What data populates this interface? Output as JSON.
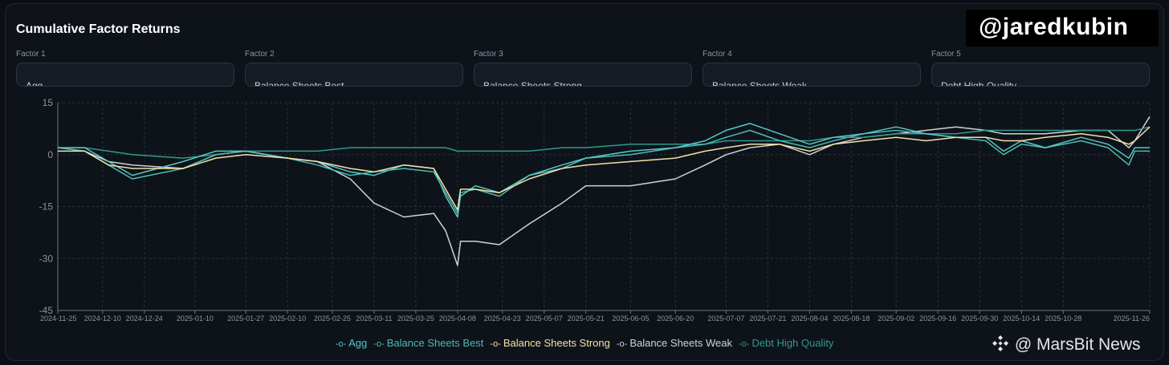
{
  "title": "Cumulative Factor Returns",
  "selectors": [
    {
      "label": "Factor 1",
      "value": "Agg"
    },
    {
      "label": "Factor 2",
      "value": "Balance Sheets Best"
    },
    {
      "label": "Factor 3",
      "value": "Balance Sheets Strong"
    },
    {
      "label": "Factor 4",
      "value": "Balance Sheets Weak"
    },
    {
      "label": "Factor 5",
      "value": "Debt High Quality"
    }
  ],
  "watermark": "@jaredkubin",
  "brand": "@ MarsBit News",
  "download_icon": "download-icon",
  "colors": {
    "Agg": "#56c8c8",
    "Balance Sheets Best": "#4fb9b1",
    "Balance Sheets Strong": "#f2e1a6",
    "Balance Sheets Weak": "#cfd3d8",
    "Debt High Quality": "#2f9a8a"
  },
  "chart_data": {
    "type": "line",
    "title": "Cumulative Factor Returns",
    "xlabel": "",
    "ylabel": "",
    "ylim": [
      -45,
      15
    ],
    "yticks": [
      15,
      0,
      -15,
      -30,
      -45
    ],
    "x_ticks": [
      "2024-11-25",
      "2024-12-10",
      "2024-12-24",
      "2025-01-10",
      "2025-01-27",
      "2025-02-10",
      "2025-02-25",
      "2025-03-11",
      "2025-03-25",
      "2025-04-08",
      "2025-04-23",
      "2025-05-07",
      "2025-05-21",
      "2025-06-05",
      "2025-06-20",
      "2025-07-07",
      "2025-07-21",
      "2025-08-04",
      "2025-08-18",
      "2025-09-02",
      "2025-09-16",
      "2025-09-30",
      "2025-10-14",
      "2025-10-28",
      "2025-11-26"
    ],
    "grid": true,
    "legend_position": "bottom",
    "series": [
      {
        "name": "Agg",
        "x": [
          "2024-11-25",
          "2024-12-04",
          "2024-12-12",
          "2024-12-20",
          "2025-01-06",
          "2025-01-17",
          "2025-01-27",
          "2025-02-10",
          "2025-02-20",
          "2025-03-03",
          "2025-03-11",
          "2025-03-21",
          "2025-03-31",
          "2025-04-04",
          "2025-04-08",
          "2025-04-09",
          "2025-04-14",
          "2025-04-22",
          "2025-05-02",
          "2025-05-13",
          "2025-05-21",
          "2025-06-05",
          "2025-06-20",
          "2025-06-30",
          "2025-07-07",
          "2025-07-15",
          "2025-07-25",
          "2025-08-04",
          "2025-08-12",
          "2025-08-22",
          "2025-09-02",
          "2025-09-12",
          "2025-09-22",
          "2025-10-02",
          "2025-10-08",
          "2025-10-14",
          "2025-10-22",
          "2025-11-03",
          "2025-11-12",
          "2025-11-19",
          "2025-11-21",
          "2025-11-26"
        ],
        "values": [
          2,
          2,
          -2,
          -6,
          -2,
          1,
          1,
          -1,
          -2,
          -5,
          -6,
          -3,
          -4,
          -12,
          -18,
          -12,
          -9,
          -11,
          -6,
          -3,
          -1,
          1,
          2,
          4,
          7,
          9,
          6,
          3,
          5,
          6,
          8,
          6,
          5,
          5,
          1,
          4,
          2,
          5,
          3,
          -1,
          2,
          2
        ]
      },
      {
        "name": "Balance Sheets Best",
        "x": [
          "2024-11-25",
          "2024-12-04",
          "2024-12-12",
          "2024-12-20",
          "2025-01-06",
          "2025-01-17",
          "2025-01-27",
          "2025-02-10",
          "2025-02-20",
          "2025-03-03",
          "2025-03-11",
          "2025-03-21",
          "2025-03-31",
          "2025-04-04",
          "2025-04-08",
          "2025-04-09",
          "2025-04-14",
          "2025-04-22",
          "2025-05-02",
          "2025-05-13",
          "2025-05-21",
          "2025-06-05",
          "2025-06-20",
          "2025-06-30",
          "2025-07-07",
          "2025-07-15",
          "2025-07-25",
          "2025-08-04",
          "2025-08-12",
          "2025-08-22",
          "2025-09-02",
          "2025-09-12",
          "2025-09-22",
          "2025-10-02",
          "2025-10-08",
          "2025-10-14",
          "2025-10-22",
          "2025-11-03",
          "2025-11-12",
          "2025-11-19",
          "2025-11-21",
          "2025-11-26"
        ],
        "values": [
          2,
          1,
          -3,
          -7,
          -4,
          0,
          1,
          -1,
          -3,
          -6,
          -5,
          -4,
          -5,
          -11,
          -17,
          -11,
          -10,
          -12,
          -6,
          -4,
          -1,
          0,
          2,
          3,
          5,
          7,
          4,
          2,
          4,
          6,
          7,
          6,
          5,
          4,
          0,
          3,
          2,
          4,
          2,
          -3,
          1,
          1
        ]
      },
      {
        "name": "Balance Sheets Strong",
        "x": [
          "2024-11-25",
          "2024-12-04",
          "2024-12-12",
          "2024-12-20",
          "2025-01-06",
          "2025-01-17",
          "2025-01-27",
          "2025-02-10",
          "2025-02-20",
          "2025-03-03",
          "2025-03-11",
          "2025-03-21",
          "2025-03-31",
          "2025-04-04",
          "2025-04-08",
          "2025-04-09",
          "2025-04-14",
          "2025-04-22",
          "2025-05-02",
          "2025-05-13",
          "2025-05-21",
          "2025-06-05",
          "2025-06-20",
          "2025-06-30",
          "2025-07-07",
          "2025-07-15",
          "2025-07-25",
          "2025-08-04",
          "2025-08-12",
          "2025-08-22",
          "2025-09-02",
          "2025-09-12",
          "2025-09-22",
          "2025-10-02",
          "2025-10-08",
          "2025-10-14",
          "2025-10-22",
          "2025-11-03",
          "2025-11-12",
          "2025-11-19",
          "2025-11-21",
          "2025-11-26"
        ],
        "values": [
          1,
          1,
          -3,
          -4,
          -4,
          -1,
          0,
          -1,
          -2,
          -4,
          -5,
          -3,
          -4,
          -10,
          -16,
          -10,
          -10,
          -11,
          -7,
          -4,
          -3,
          -2,
          -1,
          1,
          2,
          3,
          3,
          1,
          3,
          4,
          5,
          4,
          5,
          5,
          4,
          4,
          5,
          6,
          5,
          3,
          4,
          8
        ]
      },
      {
        "name": "Balance Sheets Weak",
        "x": [
          "2024-11-25",
          "2024-12-04",
          "2024-12-12",
          "2024-12-20",
          "2025-01-06",
          "2025-01-17",
          "2025-01-27",
          "2025-02-10",
          "2025-02-20",
          "2025-03-03",
          "2025-03-11",
          "2025-03-21",
          "2025-03-31",
          "2025-04-04",
          "2025-04-08",
          "2025-04-09",
          "2025-04-14",
          "2025-04-22",
          "2025-05-02",
          "2025-05-13",
          "2025-05-21",
          "2025-06-05",
          "2025-06-20",
          "2025-06-30",
          "2025-07-07",
          "2025-07-15",
          "2025-07-25",
          "2025-08-04",
          "2025-08-12",
          "2025-08-22",
          "2025-09-02",
          "2025-09-12",
          "2025-09-22",
          "2025-10-02",
          "2025-10-08",
          "2025-10-14",
          "2025-10-22",
          "2025-11-03",
          "2025-11-12",
          "2025-11-19",
          "2025-11-21",
          "2025-11-26"
        ],
        "values": [
          2,
          1,
          -2,
          -3,
          -4,
          0,
          1,
          -1,
          -2,
          -7,
          -14,
          -18,
          -17,
          -22,
          -32,
          -25,
          -25,
          -26,
          -20,
          -14,
          -9,
          -9,
          -7,
          -3,
          0,
          2,
          3,
          0,
          3,
          5,
          6,
          7,
          8,
          7,
          6,
          6,
          6,
          7,
          7,
          2,
          4,
          11
        ]
      },
      {
        "name": "Debt High Quality",
        "x": [
          "2024-11-25",
          "2024-12-04",
          "2024-12-12",
          "2024-12-20",
          "2025-01-06",
          "2025-01-17",
          "2025-01-27",
          "2025-02-10",
          "2025-02-20",
          "2025-03-03",
          "2025-03-11",
          "2025-03-21",
          "2025-03-31",
          "2025-04-04",
          "2025-04-08",
          "2025-04-09",
          "2025-04-14",
          "2025-04-22",
          "2025-05-02",
          "2025-05-13",
          "2025-05-21",
          "2025-06-05",
          "2025-06-20",
          "2025-06-30",
          "2025-07-07",
          "2025-07-15",
          "2025-07-25",
          "2025-08-04",
          "2025-08-12",
          "2025-08-22",
          "2025-09-02",
          "2025-09-12",
          "2025-09-22",
          "2025-10-02",
          "2025-10-08",
          "2025-10-14",
          "2025-10-22",
          "2025-11-03",
          "2025-11-12",
          "2025-11-19",
          "2025-11-21",
          "2025-11-26"
        ],
        "values": [
          2,
          2,
          1,
          0,
          -1,
          0,
          1,
          1,
          1,
          2,
          2,
          2,
          2,
          2,
          1,
          1,
          1,
          1,
          1,
          2,
          2,
          3,
          3,
          3,
          4,
          4,
          4,
          4,
          5,
          5,
          6,
          6,
          6,
          7,
          7,
          7,
          7,
          7,
          7,
          7,
          7,
          8
        ]
      }
    ]
  }
}
